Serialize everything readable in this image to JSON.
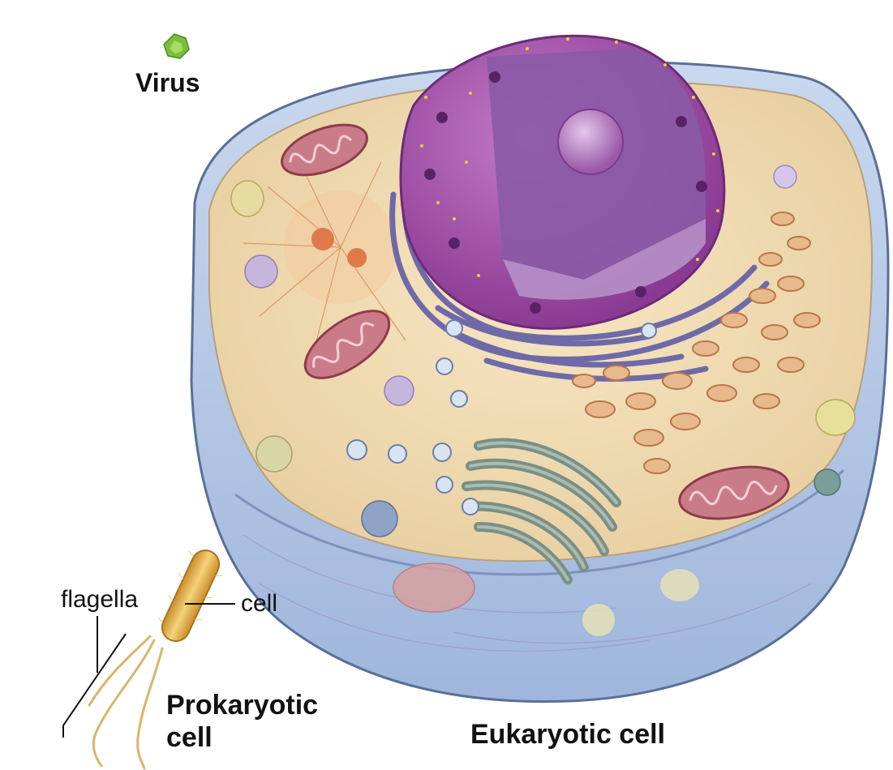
{
  "labels": {
    "virus": "Virus",
    "flagella": "flagella",
    "cell": "cell",
    "prokaryotic_line1": "Prokaryotic",
    "prokaryotic_line2": "cell",
    "eukaryotic": "Eukaryotic cell"
  },
  "colors": {
    "virus": "#7cbf3a",
    "membrane_outer": "#b7c9e6",
    "cytoplasm": "#f2dcb2",
    "nucleus": "#a34aa8",
    "nucleus_interior": "#7f4a9c",
    "nucleolus": "#c89ad0",
    "mitochondria": "#b45a68",
    "golgi": "#8fa598",
    "smooth_er": "#d99a6a",
    "bacterium": "#e0b04a",
    "flagella": "#d9b56c",
    "ribosome": "#e6d42a"
  }
}
